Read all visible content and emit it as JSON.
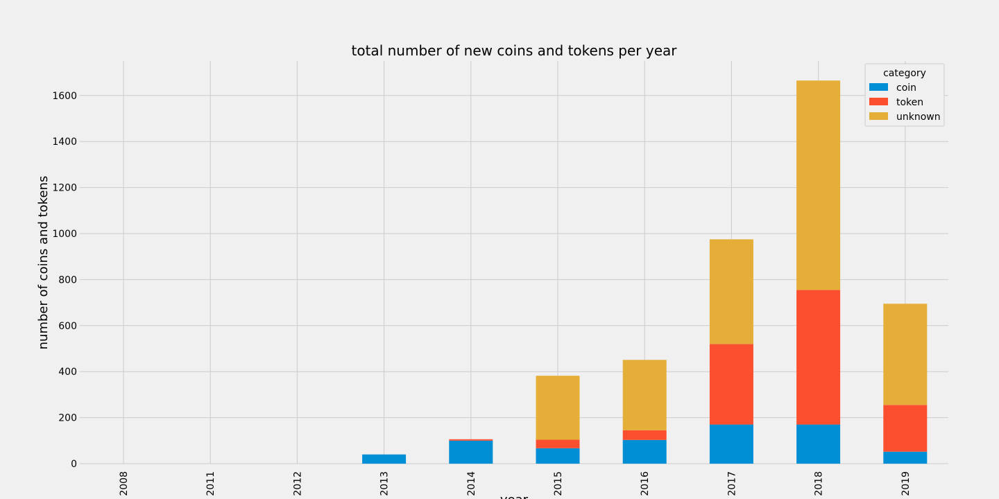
{
  "chart_data": {
    "type": "bar",
    "stacked": true,
    "title": "total number of new coins and tokens per year",
    "xlabel": "year",
    "ylabel": "number of coins and tokens",
    "categories": [
      "2008",
      "2011",
      "2012",
      "2013",
      "2014",
      "2015",
      "2016",
      "2017",
      "2018",
      "2019"
    ],
    "series": [
      {
        "name": "coin",
        "color": "#008fd5",
        "values": [
          0,
          0,
          0,
          40,
          100,
          67,
          103,
          170,
          170,
          52
        ]
      },
      {
        "name": "token",
        "color": "#fc4f30",
        "values": [
          0,
          0,
          0,
          0,
          6,
          37,
          42,
          350,
          585,
          203
        ]
      },
      {
        "name": "unknown",
        "color": "#e5ae38",
        "values": [
          0,
          0,
          0,
          0,
          0,
          278,
          306,
          455,
          910,
          440
        ]
      }
    ],
    "ylim": [
      0,
      1750
    ],
    "yticks": [
      0,
      200,
      400,
      600,
      800,
      1000,
      1200,
      1400,
      1600
    ],
    "grid": true,
    "legend": {
      "title": "category",
      "placement": "top-right"
    }
  }
}
